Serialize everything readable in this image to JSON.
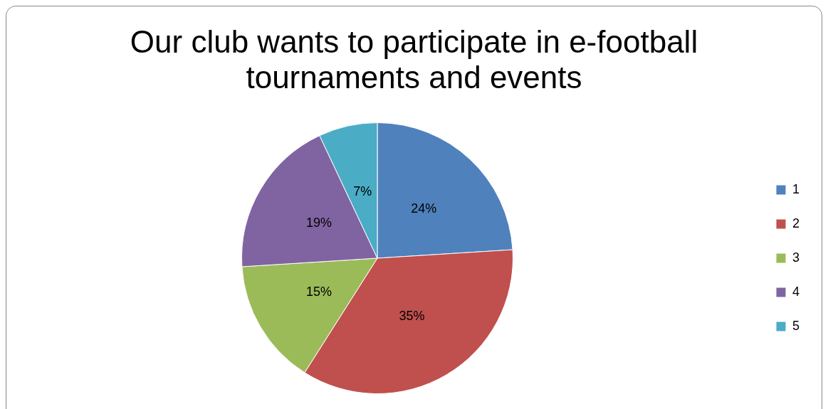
{
  "chart_data": {
    "type": "pie",
    "title": "Our club wants to participate in e-football tournaments and events",
    "categories": [
      "1",
      "2",
      "3",
      "4",
      "5"
    ],
    "values": [
      24,
      35,
      15,
      19,
      7
    ],
    "value_labels": [
      "24%",
      "35%",
      "15%",
      "19%",
      "7%"
    ],
    "colors": [
      "#4f81bd",
      "#c0504d",
      "#9bbb59",
      "#8064a2",
      "#4bacc6"
    ],
    "legend": "right"
  }
}
